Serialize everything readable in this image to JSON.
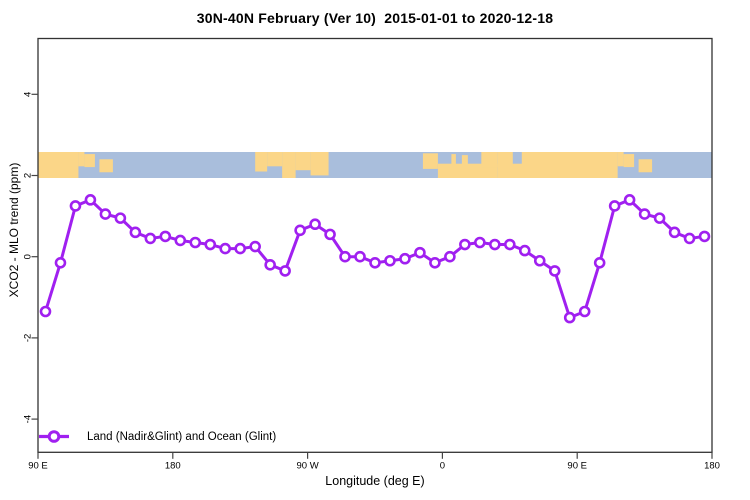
{
  "chart": {
    "title": "30N-40N February (Ver 10)  2015-01-01 to 2020-12-18"
  },
  "chart_data": {
    "type": "line",
    "title": "30N-40N February (Ver 10)  2015-01-01 to 2020-12-18",
    "xlabel": "Longitude (deg E)",
    "ylabel": "XCO2 - MLO trend (ppm)",
    "grid": false,
    "legend_position": "bottom-left",
    "line_color": "#A020F0",
    "marker": "open-circle",
    "xlim_deg_wrapped": [
      90,
      540
    ],
    "ylim": [
      -4.8,
      5.4
    ],
    "x_ticks": [
      {
        "lon": 90,
        "label": "90 E"
      },
      {
        "lon": 180,
        "label": "180"
      },
      {
        "lon": 270,
        "label": "90 W"
      },
      {
        "lon": 360,
        "label": "0"
      },
      {
        "lon": 450,
        "label": "90 E"
      },
      {
        "lon": 540,
        "label": "180"
      }
    ],
    "y_ticks": [
      {
        "value": -4,
        "label": "-4"
      },
      {
        "value": -2,
        "label": "-2"
      },
      {
        "value": 0,
        "label": "0"
      },
      {
        "value": 2,
        "label": "2"
      },
      {
        "value": 4,
        "label": "4"
      }
    ],
    "series": [
      {
        "name": "Land (Nadir&Glint) and Ocean (Glint)",
        "x_deg_wrapped": [
          95,
          105,
          115,
          125,
          135,
          145,
          155,
          165,
          175,
          185,
          195,
          205,
          215,
          225,
          235,
          245,
          255,
          265,
          275,
          285,
          295,
          305,
          315,
          325,
          335,
          345,
          355,
          365,
          375,
          385,
          395,
          405,
          415,
          425,
          435,
          445,
          455,
          465,
          475,
          485,
          495,
          505,
          515,
          525,
          535
        ],
        "y": [
          -1.35,
          -0.15,
          1.25,
          1.4,
          1.05,
          0.95,
          0.6,
          0.45,
          0.5,
          0.4,
          0.35,
          0.3,
          0.2,
          0.2,
          0.25,
          -0.2,
          -0.35,
          0.65,
          0.8,
          0.55,
          0,
          0,
          -0.15,
          -0.1,
          -0.05,
          0.1,
          -0.15,
          0,
          0.3,
          0.35,
          0.3,
          0.3,
          0.15,
          -0.1,
          -0.35,
          -1.5,
          -1.35,
          -0.15,
          1.25,
          1.4,
          1.05,
          0.95,
          0.6,
          0.45,
          0.5
        ]
      }
    ],
    "map_band": {
      "description": "coastline strip across top of plot",
      "y_range_data": [
        1.95,
        2.6
      ],
      "ocean_color": "#A9BEDC",
      "land_color": "#FBD688",
      "land_segments": [
        {
          "from": 90,
          "to": 117,
          "top": 0,
          "height": 1
        },
        {
          "from": 117,
          "to": 121,
          "top": 0,
          "height": 0.55
        },
        {
          "from": 121,
          "to": 128,
          "top": 0.08,
          "height": 0.5
        },
        {
          "from": 131,
          "to": 140,
          "top": 0.28,
          "height": 0.5
        },
        {
          "from": 235,
          "to": 243,
          "top": 0,
          "height": 0.75
        },
        {
          "from": 243,
          "to": 253,
          "top": 0,
          "height": 0.55
        },
        {
          "from": 253,
          "to": 262,
          "top": 0,
          "height": 1
        },
        {
          "from": 262,
          "to": 272,
          "top": 0,
          "height": 0.7
        },
        {
          "from": 272,
          "to": 284,
          "top": 0,
          "height": 0.9
        },
        {
          "from": 347,
          "to": 357,
          "top": 0.05,
          "height": 0.6
        },
        {
          "from": 357,
          "to": 397,
          "top": 0.45,
          "height": 0.55
        },
        {
          "from": 366,
          "to": 369,
          "top": 0.08,
          "height": 0.4
        },
        {
          "from": 373,
          "to": 377,
          "top": 0.12,
          "height": 0.42
        },
        {
          "from": 386,
          "to": 397,
          "top": 0,
          "height": 0.6
        },
        {
          "from": 397,
          "to": 477,
          "top": 0,
          "height": 1
        },
        {
          "from": 477,
          "to": 481,
          "top": 0,
          "height": 0.55
        },
        {
          "from": 481,
          "to": 488,
          "top": 0.08,
          "height": 0.5
        },
        {
          "from": 491,
          "to": 500,
          "top": 0.28,
          "height": 0.5
        }
      ],
      "water_patches": [
        {
          "from": 407,
          "to": 413,
          "top": 0,
          "height": 0.45
        }
      ]
    }
  }
}
